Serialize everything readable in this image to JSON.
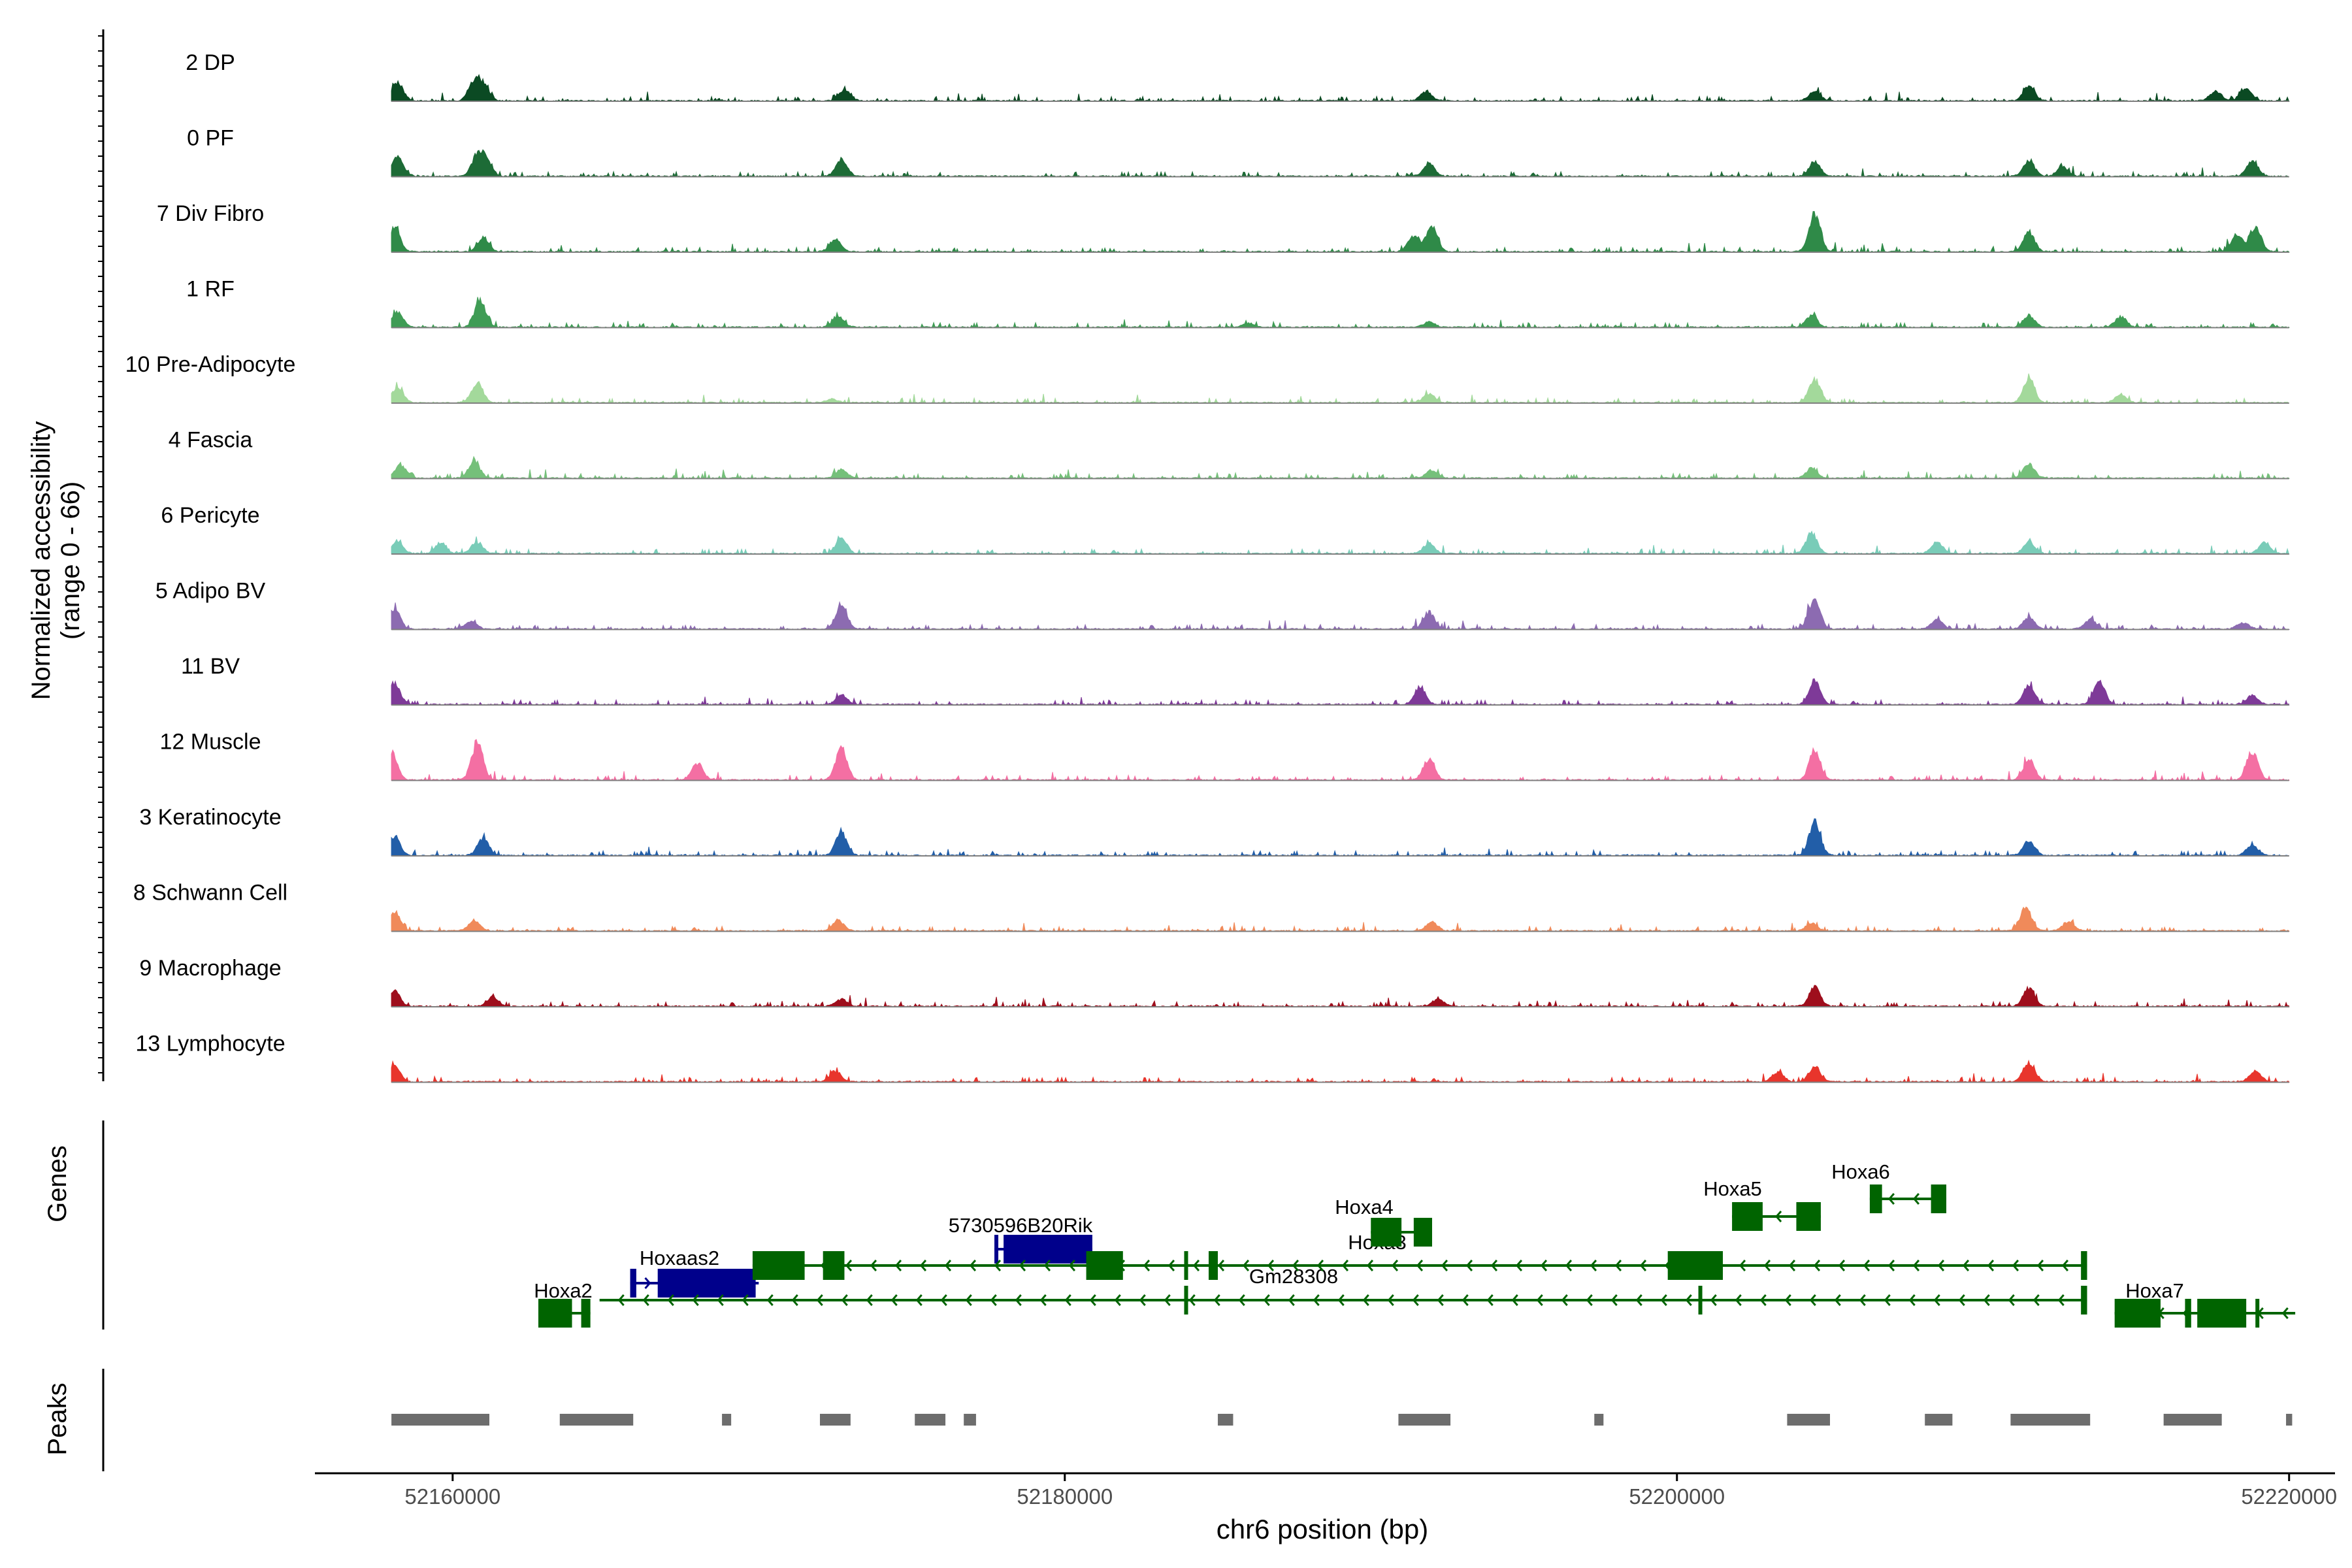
{
  "chart_data": {
    "type": "area",
    "title": "",
    "ylabel_line1": "Normalized accessibility",
    "ylabel_line2": "(range 0 - 66)",
    "xlabel": "chr6 position (bp)",
    "xlim": [
      52155500,
      52221500
    ],
    "ylim": [
      0,
      66
    ],
    "xticks": [
      52160000,
      52180000,
      52200000,
      52220000
    ],
    "xtick_labels": [
      "52160000",
      "52180000",
      "52200000",
      "52220000"
    ],
    "data_range": [
      52158000,
      52220000
    ],
    "tracks": [
      {
        "name": "2 DP",
        "color": "#0b4a23",
        "peaks": [
          [
            52158200,
            20
          ],
          [
            52160700,
            21
          ],
          [
            52161000,
            16
          ],
          [
            52172800,
            12
          ],
          [
            52191800,
            10
          ],
          [
            52204500,
            11
          ],
          [
            52211500,
            16
          ],
          [
            52217600,
            11
          ],
          [
            52218600,
            14
          ]
        ]
      },
      {
        "name": "0 PF",
        "color": "#1d6b36",
        "peaks": [
          [
            52158200,
            23
          ],
          [
            52160800,
            22
          ],
          [
            52161100,
            16
          ],
          [
            52172700,
            19
          ],
          [
            52191900,
            15
          ],
          [
            52204500,
            16
          ],
          [
            52211500,
            17
          ],
          [
            52212600,
            10
          ],
          [
            52218800,
            17
          ]
        ]
      },
      {
        "name": "7 Div Fibro",
        "color": "#2f8a48",
        "peaks": [
          [
            52158100,
            26
          ],
          [
            52161000,
            16
          ],
          [
            52172500,
            14
          ],
          [
            52191400,
            18
          ],
          [
            52192000,
            28
          ],
          [
            52204500,
            43
          ],
          [
            52211500,
            22
          ],
          [
            52218300,
            19
          ],
          [
            52218900,
            28
          ]
        ]
      },
      {
        "name": "1 RF",
        "color": "#3f9c55",
        "peaks": [
          [
            52158200,
            17
          ],
          [
            52160900,
            30
          ],
          [
            52172600,
            12
          ],
          [
            52186000,
            5
          ],
          [
            52191900,
            6
          ],
          [
            52204400,
            13
          ],
          [
            52211500,
            13
          ],
          [
            52214500,
            12
          ]
        ]
      },
      {
        "name": "10 Pre-Adipocyte",
        "color": "#a3d99b",
        "peaks": [
          [
            52158200,
            17
          ],
          [
            52160800,
            22
          ],
          [
            52172400,
            4
          ],
          [
            52191900,
            10
          ],
          [
            52204500,
            26
          ],
          [
            52211500,
            27
          ],
          [
            52214500,
            9
          ]
        ]
      },
      {
        "name": "4 Fascia",
        "color": "#75c07a",
        "peaks": [
          [
            52158300,
            15
          ],
          [
            52160700,
            19
          ],
          [
            52172700,
            10
          ],
          [
            52192000,
            9
          ],
          [
            52204400,
            11
          ],
          [
            52211500,
            16
          ]
        ]
      },
      {
        "name": "6 Pericyte",
        "color": "#79ccb8",
        "peaks": [
          [
            52158200,
            14
          ],
          [
            52159600,
            11
          ],
          [
            52160800,
            13
          ],
          [
            52172700,
            17
          ],
          [
            52191900,
            11
          ],
          [
            52204400,
            23
          ],
          [
            52208500,
            13
          ],
          [
            52211500,
            13
          ],
          [
            52219200,
            12
          ]
        ]
      },
      {
        "name": "5 Adipo BV",
        "color": "#8c6bb1",
        "peaks": [
          [
            52158100,
            23
          ],
          [
            52160600,
            9
          ],
          [
            52172700,
            28
          ],
          [
            52191900,
            19
          ],
          [
            52204500,
            34
          ],
          [
            52208500,
            11
          ],
          [
            52211500,
            13
          ],
          [
            52213500,
            11
          ],
          [
            52218500,
            7
          ]
        ]
      },
      {
        "name": "11 BV",
        "color": "#7e3a98",
        "peaks": [
          [
            52158100,
            25
          ],
          [
            52172700,
            11
          ],
          [
            52191600,
            20
          ],
          [
            52204500,
            26
          ],
          [
            52211500,
            22
          ],
          [
            52213800,
            25
          ],
          [
            52218800,
            10
          ]
        ]
      },
      {
        "name": "12 Muscle",
        "color": "#f46fa3",
        "peaks": [
          [
            52158000,
            32
          ],
          [
            52160800,
            42
          ],
          [
            52168000,
            19
          ],
          [
            52172700,
            36
          ],
          [
            52191900,
            24
          ],
          [
            52204500,
            33
          ],
          [
            52211500,
            22
          ],
          [
            52218800,
            32
          ]
        ]
      },
      {
        "name": "3 Keratinocyte",
        "color": "#225ea8",
        "peaks": [
          [
            52158100,
            20
          ],
          [
            52161000,
            19
          ],
          [
            52172700,
            26
          ],
          [
            52204500,
            38
          ],
          [
            52211500,
            16
          ],
          [
            52218800,
            12
          ]
        ]
      },
      {
        "name": "8 Schwann Cell",
        "color": "#f08a5a",
        "peaks": [
          [
            52158100,
            21
          ],
          [
            52160700,
            12
          ],
          [
            52172600,
            12
          ],
          [
            52192000,
            10
          ],
          [
            52204400,
            9
          ],
          [
            52211400,
            26
          ],
          [
            52212800,
            11
          ]
        ]
      },
      {
        "name": "9 Macrophage",
        "color": "#9e0e1c",
        "peaks": [
          [
            52158100,
            17
          ],
          [
            52161300,
            10
          ],
          [
            52172700,
            8
          ],
          [
            52192200,
            8
          ],
          [
            52204500,
            21
          ],
          [
            52211500,
            20
          ]
        ]
      },
      {
        "name": "13 Lymphocyte",
        "color": "#e8352c",
        "peaks": [
          [
            52158100,
            18
          ],
          [
            52172500,
            12
          ],
          [
            52203300,
            11
          ],
          [
            52204500,
            17
          ],
          [
            52211500,
            22
          ],
          [
            52218900,
            12
          ]
        ]
      }
    ],
    "genes_label": "Genes",
    "peaks_label": "Peaks",
    "genes": [
      {
        "name": "Hoxa2",
        "color": "#006400",
        "row": 0,
        "start": 52162800,
        "end": 52164500,
        "strand": "-",
        "exons": [
          [
            52162800,
            52163900
          ],
          [
            52164200,
            52164500
          ]
        ]
      },
      {
        "name": "Hoxaas2",
        "color": "#00008b",
        "row": 1,
        "start": 52165800,
        "end": 52170000,
        "strand": "+",
        "exons": [
          [
            52165800,
            52166000
          ],
          [
            52166700,
            52169900
          ]
        ]
      },
      {
        "name": "Gm28308",
        "color": "#006400",
        "row": 0,
        "start": 52164800,
        "end": 52213400,
        "strand": "-",
        "exons": [
          [
            52183900,
            52184000
          ],
          [
            52200700,
            52200800
          ],
          [
            52213200,
            52213400
          ]
        ]
      },
      {
        "name": "5730596B20Rik",
        "color": "#00008b",
        "row": 2,
        "start": 52177700,
        "end": 52180900,
        "strand": "+",
        "exons": [
          [
            52177700,
            52177800
          ],
          [
            52178000,
            52180900
          ]
        ]
      },
      {
        "name": "",
        "color": "#006400",
        "row": 1,
        "start": 52169800,
        "end": 52213400,
        "strand": "-",
        "exons": [
          [
            52169800,
            52171500
          ],
          [
            52172100,
            52172800
          ],
          [
            52180700,
            52181900
          ],
          [
            52183900,
            52184000
          ],
          [
            52184700,
            52185000
          ],
          [
            52199700,
            52201500
          ],
          [
            52213200,
            52213400
          ]
        ]
      },
      {
        "name": "Hoxa3",
        "color": "#006400",
        "row": 2,
        "start": 52191100,
        "end": 52192000,
        "strand": "-",
        "exons": [
          [
            52191400,
            52192000
          ]
        ]
      },
      {
        "name": "Hoxa4",
        "color": "#006400",
        "row": 2,
        "start": 52190000,
        "end": 52192000,
        "strand": "-",
        "exons": [
          [
            52190000,
            52191000
          ],
          [
            52191500,
            52192000
          ]
        ]
      },
      {
        "name": "Hoxa5",
        "color": "#006400",
        "row": 3,
        "start": 52201800,
        "end": 52204700,
        "strand": "-",
        "exons": [
          [
            52201800,
            52202800
          ],
          [
            52203900,
            52204700
          ]
        ]
      },
      {
        "name": "Hoxa6",
        "color": "#006400",
        "row": 4,
        "start": 52206300,
        "end": 52208800,
        "strand": "-",
        "exons": [
          [
            52206300,
            52206700
          ],
          [
            52208300,
            52208800
          ]
        ]
      },
      {
        "name": "Hoxa7",
        "color": "#006400",
        "row": 0,
        "start": 52214300,
        "end": 52220200,
        "strand": "-",
        "exons": [
          [
            52214300,
            52215800
          ],
          [
            52216600,
            52216800
          ],
          [
            52217000,
            52218600
          ],
          [
            52218900,
            52219000
          ]
        ]
      }
    ],
    "peak_regions": [
      [
        52158000,
        52161200
      ],
      [
        52163500,
        52165900
      ],
      [
        52168800,
        52169100
      ],
      [
        52172000,
        52173000
      ],
      [
        52175100,
        52176100
      ],
      [
        52176700,
        52177100
      ],
      [
        52185000,
        52185500
      ],
      [
        52190900,
        52192600
      ],
      [
        52197300,
        52197600
      ],
      [
        52203600,
        52205000
      ],
      [
        52208100,
        52209000
      ],
      [
        52210900,
        52213500
      ],
      [
        52215900,
        52217800
      ],
      [
        52219900,
        52220100
      ]
    ]
  }
}
